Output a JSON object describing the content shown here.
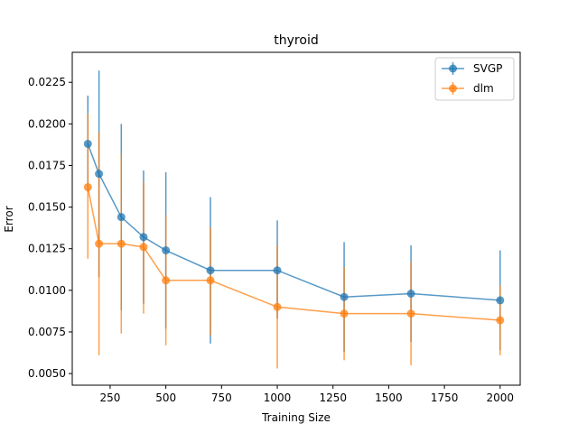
{
  "chart_data": {
    "type": "line",
    "title": "thyroid",
    "xlabel": "Training Size",
    "ylabel": "Error",
    "xlim": [
      80,
      2090
    ],
    "ylim": [
      0.0043,
      0.0243
    ],
    "xticks": [
      250,
      500,
      750,
      1000,
      1250,
      1500,
      1750,
      2000
    ],
    "xtick_labels": [
      "250",
      "500",
      "750",
      "1000",
      "1250",
      "1500",
      "1750",
      "2000"
    ],
    "yticks": [
      0.005,
      0.0075,
      0.01,
      0.0125,
      0.015,
      0.0175,
      0.02,
      0.0225
    ],
    "ytick_labels": [
      "0.0050",
      "0.0075",
      "0.0100",
      "0.0125",
      "0.0150",
      "0.0175",
      "0.0200",
      "0.0225"
    ],
    "grid": false,
    "legend_position": "top-right",
    "x": [
      150,
      200,
      300,
      400,
      500,
      700,
      1000,
      1300,
      1600,
      2000
    ],
    "series": [
      {
        "name": "SVGP",
        "color": "#1f77b4",
        "values": [
          0.0188,
          0.017,
          0.0144,
          0.0132,
          0.0124,
          0.0112,
          0.0112,
          0.0096,
          0.0098,
          0.0094
        ],
        "err_low": [
          0.0159,
          0.0108,
          0.0088,
          0.0092,
          0.0077,
          0.0068,
          0.0083,
          0.0063,
          0.0069,
          0.0064
        ],
        "err_high": [
          0.0217,
          0.0232,
          0.02,
          0.0172,
          0.0171,
          0.0156,
          0.0142,
          0.0129,
          0.0127,
          0.0124
        ]
      },
      {
        "name": "dlm",
        "color": "#ff7f0e",
        "values": [
          0.0162,
          0.0128,
          0.0128,
          0.0126,
          0.0106,
          0.0106,
          0.009,
          0.0086,
          0.0086,
          0.0082
        ],
        "err_low": [
          0.0119,
          0.0061,
          0.0074,
          0.0086,
          0.0067,
          0.0073,
          0.0053,
          0.0058,
          0.0055,
          0.0061
        ],
        "err_high": [
          0.0206,
          0.0195,
          0.0182,
          0.0165,
          0.0145,
          0.0138,
          0.0127,
          0.0114,
          0.0117,
          0.0103
        ]
      }
    ]
  }
}
